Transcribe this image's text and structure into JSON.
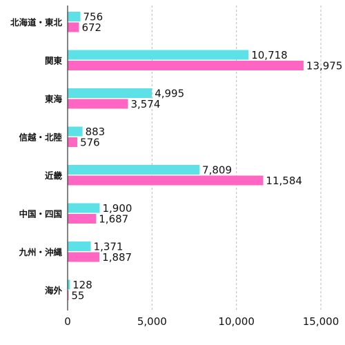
{
  "chart_data": {
    "type": "bar",
    "orientation": "horizontal",
    "categories": [
      "北海道・東北",
      "関東",
      "東海",
      "信越・北陸",
      "近畿",
      "中国・四国",
      "九州・沖縄",
      "海外"
    ],
    "series": [
      {
        "values": [
          756,
          10718,
          4995,
          883,
          7809,
          1900,
          1371,
          128
        ],
        "labels": [
          "756",
          "10,718",
          "4,995",
          "883",
          "7,809",
          "1,900",
          "1,371",
          "128"
        ],
        "color": "#5ce1e6"
      },
      {
        "values": [
          672,
          13975,
          3574,
          576,
          11584,
          1687,
          1887,
          55
        ],
        "labels": [
          "672",
          "13,975",
          "3,574",
          "576",
          "11,584",
          "1,687",
          "1,887",
          "55"
        ],
        "color": "#ff66c4"
      }
    ],
    "xlim": [
      0,
      15000
    ],
    "xticks": [
      0,
      5000,
      10000,
      15000
    ],
    "xtick_labels": [
      "0",
      "5,000",
      "10,000",
      "15,000"
    ],
    "grid": true,
    "legend": "none"
  }
}
